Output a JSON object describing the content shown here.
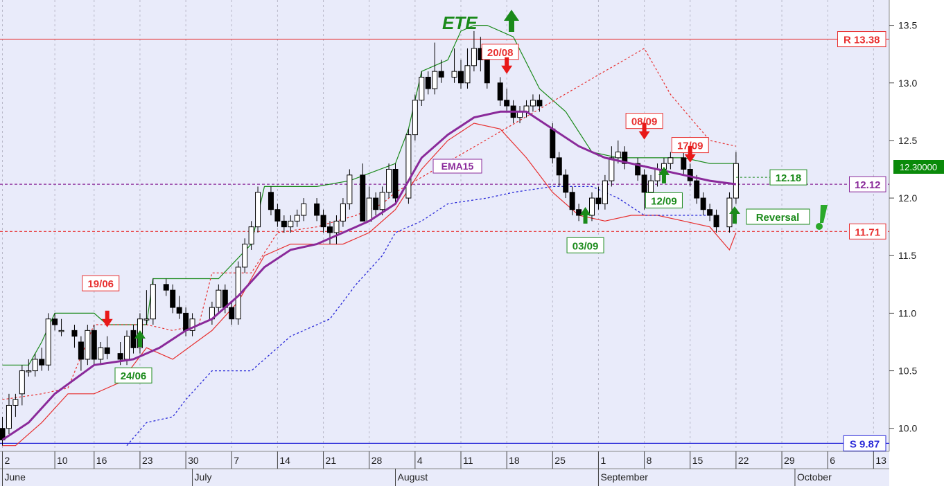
{
  "chart_data": {
    "type": "candlestick",
    "ylim": [
      9.8,
      13.72
    ],
    "y_ticks": [
      "10.0",
      "10.5",
      "11.0",
      "11.5",
      "12.0",
      "12.5",
      "13.0",
      "13.5"
    ],
    "x_days": [
      {
        "l": "2",
        "d": 2
      },
      {
        "l": "10",
        "d": 10
      },
      {
        "l": "16",
        "d": 16
      },
      {
        "l": "23",
        "d": 23
      },
      {
        "l": "30",
        "d": 30
      },
      {
        "l": "7",
        "d": 37
      },
      {
        "l": "14",
        "d": 44
      },
      {
        "l": "21",
        "d": 51
      },
      {
        "l": "28",
        "d": 58
      },
      {
        "l": "4",
        "d": 65
      },
      {
        "l": "11",
        "d": 72
      },
      {
        "l": "18",
        "d": 79
      },
      {
        "l": "25",
        "d": 86
      },
      {
        "l": "1",
        "d": 93
      },
      {
        "l": "8",
        "d": 100
      },
      {
        "l": "15",
        "d": 107
      },
      {
        "l": "22",
        "d": 114
      },
      {
        "l": "29",
        "d": 121
      },
      {
        "l": "6",
        "d": 128
      },
      {
        "l": "13",
        "d": 135
      }
    ],
    "x_months": [
      {
        "l": "June",
        "d": 2
      },
      {
        "l": "July",
        "d": 31
      },
      {
        "l": "August",
        "d": 62
      },
      {
        "l": "September",
        "d": 93
      },
      {
        "l": "October",
        "d": 123
      }
    ],
    "candles": [
      [
        2,
        10.0,
        9.9,
        10.1,
        9.85
      ],
      [
        3,
        10.0,
        10.2,
        10.3,
        9.95
      ],
      [
        4,
        10.2,
        10.25,
        10.3,
        10.1
      ],
      [
        5,
        10.3,
        10.5,
        10.55,
        10.2
      ],
      [
        6,
        10.5,
        10.5,
        10.6,
        10.45
      ],
      [
        7,
        10.5,
        10.6,
        10.65,
        10.45
      ],
      [
        8,
        10.6,
        10.55,
        10.7,
        10.5
      ],
      [
        9,
        10.55,
        10.95,
        11.0,
        10.5
      ],
      [
        10,
        10.95,
        10.9,
        11.0,
        10.85
      ],
      [
        11,
        10.85,
        10.85,
        10.95,
        10.8
      ],
      [
        13,
        10.85,
        10.8,
        10.9,
        10.7
      ],
      [
        14,
        10.75,
        10.6,
        10.8,
        10.5
      ],
      [
        15,
        10.6,
        10.85,
        10.9,
        10.55
      ],
      [
        16,
        10.85,
        10.6,
        10.9,
        10.55
      ],
      [
        17,
        10.6,
        10.7,
        10.75,
        10.55
      ],
      [
        18,
        10.7,
        10.65,
        10.8,
        10.6
      ],
      [
        20,
        10.65,
        10.6,
        10.75,
        10.55
      ],
      [
        21,
        10.6,
        10.8,
        10.85,
        10.55
      ],
      [
        22,
        10.85,
        10.7,
        10.9,
        10.65
      ],
      [
        23,
        10.7,
        10.95,
        11.0,
        10.65
      ],
      [
        24,
        10.95,
        10.95,
        11.2,
        10.9
      ],
      [
        25,
        10.95,
        11.25,
        11.3,
        10.9
      ],
      [
        27,
        11.25,
        11.2,
        11.3,
        11.15
      ],
      [
        28,
        11.2,
        11.05,
        11.25,
        11.0
      ],
      [
        29,
        11.05,
        11.0,
        11.15,
        10.95
      ],
      [
        30,
        11.0,
        10.85,
        11.05,
        10.8
      ],
      [
        31,
        10.85,
        10.95,
        11.0,
        10.8
      ],
      [
        34,
        10.95,
        11.05,
        11.1,
        10.9
      ],
      [
        35,
        11.05,
        11.2,
        11.25,
        11.0
      ],
      [
        36,
        11.2,
        11.05,
        11.25,
        11.0
      ],
      [
        37,
        11.05,
        10.95,
        11.1,
        10.9
      ],
      [
        38,
        10.95,
        11.4,
        11.45,
        10.9
      ],
      [
        39,
        11.4,
        11.6,
        11.65,
        11.35
      ],
      [
        40,
        11.6,
        11.75,
        11.8,
        11.55
      ],
      [
        41,
        11.75,
        12.05,
        12.1,
        11.7
      ],
      [
        43,
        12.05,
        11.9,
        12.1,
        11.85
      ],
      [
        44,
        11.9,
        11.8,
        11.95,
        11.75
      ],
      [
        45,
        11.8,
        11.75,
        11.85,
        11.7
      ],
      [
        46,
        11.75,
        11.8,
        11.85,
        11.7
      ],
      [
        47,
        11.8,
        11.85,
        11.9,
        11.75
      ],
      [
        48,
        11.85,
        11.95,
        12.0,
        11.8
      ],
      [
        50,
        11.95,
        11.85,
        12.0,
        11.8
      ],
      [
        51,
        11.85,
        11.75,
        11.9,
        11.7
      ],
      [
        52,
        11.75,
        11.7,
        11.8,
        11.6
      ],
      [
        53,
        11.7,
        11.8,
        11.85,
        11.6
      ],
      [
        54,
        11.8,
        11.95,
        12.0,
        11.75
      ],
      [
        55,
        11.95,
        12.2,
        12.25,
        11.9
      ],
      [
        57,
        12.2,
        11.8,
        12.3,
        11.8
      ],
      [
        58,
        11.8,
        12.0,
        12.1,
        11.8
      ],
      [
        59,
        12.0,
        11.9,
        12.05,
        11.85
      ],
      [
        60,
        11.9,
        12.05,
        12.1,
        11.85
      ],
      [
        61,
        12.05,
        12.25,
        12.3,
        12.0
      ],
      [
        62,
        12.25,
        12.0,
        12.3,
        11.95
      ],
      [
        64,
        12.0,
        12.55,
        12.6,
        11.95
      ],
      [
        65,
        12.55,
        12.85,
        12.9,
        12.5
      ],
      [
        66,
        12.85,
        13.05,
        13.1,
        12.8
      ],
      [
        67,
        13.05,
        12.95,
        13.1,
        12.9
      ],
      [
        68,
        12.95,
        13.1,
        13.35,
        12.9
      ],
      [
        69,
        13.1,
        13.05,
        13.2,
        13.0
      ],
      [
        71,
        13.05,
        13.1,
        13.3,
        13.0
      ],
      [
        72,
        13.1,
        13.0,
        13.2,
        12.95
      ],
      [
        73,
        13.0,
        13.15,
        13.3,
        12.95
      ],
      [
        74,
        13.15,
        13.3,
        13.45,
        13.1
      ],
      [
        75,
        13.3,
        13.2,
        13.4,
        13.1
      ],
      [
        76,
        13.2,
        13.0,
        13.25,
        12.95
      ],
      [
        78,
        13.0,
        12.85,
        13.05,
        12.8
      ],
      [
        79,
        12.85,
        12.8,
        12.95,
        12.75
      ],
      [
        80,
        12.8,
        12.7,
        12.85,
        12.65
      ],
      [
        81,
        12.7,
        12.75,
        12.8,
        12.65
      ],
      [
        82,
        12.75,
        12.8,
        12.85,
        12.7
      ],
      [
        83,
        12.8,
        12.85,
        12.9,
        12.75
      ],
      [
        84,
        12.85,
        12.8,
        12.9,
        12.75
      ],
      [
        86,
        12.6,
        12.35,
        12.65,
        12.3
      ],
      [
        87,
        12.35,
        12.2,
        12.4,
        12.1
      ],
      [
        88,
        12.2,
        12.05,
        12.25,
        12.0
      ],
      [
        89,
        12.05,
        11.9,
        12.1,
        11.85
      ],
      [
        90,
        11.9,
        11.85,
        11.95,
        11.8
      ],
      [
        92,
        11.85,
        12.0,
        12.05,
        11.8
      ],
      [
        93,
        12.0,
        11.95,
        12.1,
        11.9
      ],
      [
        94,
        11.95,
        12.15,
        12.2,
        11.9
      ],
      [
        95,
        12.15,
        12.35,
        12.45,
        12.1
      ],
      [
        96,
        12.35,
        12.4,
        12.5,
        12.3
      ],
      [
        97,
        12.4,
        12.3,
        12.45,
        12.25
      ],
      [
        99,
        12.3,
        12.2,
        12.35,
        12.15
      ],
      [
        100,
        12.2,
        12.05,
        12.25,
        11.9
      ],
      [
        101,
        12.05,
        12.15,
        12.2,
        12.0
      ],
      [
        102,
        12.15,
        12.25,
        12.3,
        12.1
      ],
      [
        103,
        12.25,
        12.3,
        12.35,
        12.2
      ],
      [
        104,
        12.3,
        12.35,
        12.4,
        12.25
      ],
      [
        106,
        12.35,
        12.25,
        12.4,
        12.2
      ],
      [
        107,
        12.25,
        12.15,
        12.3,
        12.1
      ],
      [
        108,
        12.15,
        12.0,
        12.2,
        11.95
      ],
      [
        109,
        12.0,
        11.9,
        12.05,
        11.85
      ],
      [
        110,
        11.9,
        11.85,
        11.95,
        11.8
      ],
      [
        111,
        11.85,
        11.75,
        11.9,
        11.7
      ],
      [
        113,
        11.75,
        12.0,
        12.05,
        11.7
      ],
      [
        114,
        12.0,
        12.3,
        12.4,
        11.95
      ]
    ],
    "ema_label": "EMA15",
    "ema": [
      [
        2,
        9.9
      ],
      [
        6,
        10.05
      ],
      [
        10,
        10.3
      ],
      [
        16,
        10.55
      ],
      [
        22,
        10.6
      ],
      [
        26,
        10.7
      ],
      [
        30,
        10.85
      ],
      [
        34,
        10.95
      ],
      [
        38,
        11.15
      ],
      [
        42,
        11.4
      ],
      [
        46,
        11.55
      ],
      [
        50,
        11.6
      ],
      [
        54,
        11.7
      ],
      [
        58,
        11.8
      ],
      [
        62,
        11.95
      ],
      [
        66,
        12.35
      ],
      [
        70,
        12.55
      ],
      [
        74,
        12.7
      ],
      [
        78,
        12.75
      ],
      [
        82,
        12.75
      ],
      [
        86,
        12.6
      ],
      [
        90,
        12.45
      ],
      [
        94,
        12.35
      ],
      [
        98,
        12.3
      ],
      [
        102,
        12.25
      ],
      [
        106,
        12.2
      ],
      [
        110,
        12.15
      ],
      [
        114,
        12.12
      ]
    ],
    "upper_band": [
      [
        2,
        10.55
      ],
      [
        6,
        10.55
      ],
      [
        8,
        10.75
      ],
      [
        10,
        11.0
      ],
      [
        16,
        11.0
      ],
      [
        18,
        10.9
      ],
      [
        24,
        10.9
      ],
      [
        25,
        11.3
      ],
      [
        35,
        11.3
      ],
      [
        40,
        11.6
      ],
      [
        42,
        12.1
      ],
      [
        50,
        12.1
      ],
      [
        55,
        12.15
      ],
      [
        62,
        12.3
      ],
      [
        64,
        12.6
      ],
      [
        66,
        13.1
      ],
      [
        70,
        13.2
      ],
      [
        72,
        13.45
      ],
      [
        74,
        13.5
      ],
      [
        76,
        13.5
      ],
      [
        80,
        13.4
      ],
      [
        84,
        12.95
      ],
      [
        88,
        12.75
      ],
      [
        92,
        12.4
      ],
      [
        96,
        12.35
      ],
      [
        100,
        12.35
      ],
      [
        106,
        12.35
      ],
      [
        110,
        12.3
      ],
      [
        114,
        12.3
      ]
    ],
    "lower_band": [
      [
        2,
        9.85
      ],
      [
        4,
        9.85
      ],
      [
        8,
        10.05
      ],
      [
        12,
        10.3
      ],
      [
        16,
        10.3
      ],
      [
        20,
        10.4
      ],
      [
        24,
        10.7
      ],
      [
        28,
        10.6
      ],
      [
        34,
        10.85
      ],
      [
        38,
        11.1
      ],
      [
        42,
        11.5
      ],
      [
        46,
        11.6
      ],
      [
        50,
        11.6
      ],
      [
        54,
        11.6
      ],
      [
        58,
        11.7
      ],
      [
        62,
        11.9
      ],
      [
        66,
        12.25
      ],
      [
        70,
        12.5
      ],
      [
        74,
        12.65
      ],
      [
        78,
        12.6
      ],
      [
        82,
        12.35
      ],
      [
        86,
        12.05
      ],
      [
        90,
        11.85
      ],
      [
        94,
        11.8
      ],
      [
        98,
        11.85
      ],
      [
        102,
        11.85
      ],
      [
        106,
        11.8
      ],
      [
        110,
        11.75
      ],
      [
        113,
        11.55
      ],
      [
        114,
        11.7
      ]
    ],
    "red_stop": [
      [
        2,
        10.25
      ],
      [
        8,
        10.3
      ],
      [
        12,
        10.35
      ],
      [
        16,
        10.9
      ],
      [
        20,
        10.9
      ],
      [
        24,
        10.9
      ],
      [
        28,
        10.85
      ],
      [
        32,
        10.9
      ],
      [
        34,
        11.35
      ],
      [
        40,
        11.35
      ],
      [
        44,
        11.7
      ],
      [
        50,
        11.75
      ],
      [
        56,
        11.85
      ],
      [
        60,
        11.95
      ],
      [
        62,
        12.05
      ],
      [
        100,
        13.3
      ],
      [
        104,
        12.9
      ],
      [
        110,
        12.5
      ],
      [
        114,
        12.45
      ]
    ],
    "blue_stop": [
      [
        21,
        9.85
      ],
      [
        24,
        10.05
      ],
      [
        28,
        10.1
      ],
      [
        30,
        10.25
      ],
      [
        34,
        10.5
      ],
      [
        40,
        10.5
      ],
      [
        46,
        10.8
      ],
      [
        52,
        10.95
      ],
      [
        56,
        11.25
      ],
      [
        60,
        11.5
      ],
      [
        62,
        11.7
      ],
      [
        66,
        11.8
      ],
      [
        70,
        11.95
      ],
      [
        76,
        12.0
      ],
      [
        80,
        12.05
      ],
      [
        86,
        12.1
      ],
      [
        92,
        12.1
      ],
      [
        96,
        12.0
      ],
      [
        100,
        11.85
      ],
      [
        106,
        11.85
      ],
      [
        110,
        11.85
      ]
    ],
    "levels": [
      {
        "value": 13.38,
        "label": "R 13.38",
        "color": "#e83030",
        "dash": false
      },
      {
        "value": 12.12,
        "label": "12.12",
        "color": "#8a2a9a",
        "dash": true
      },
      {
        "value": 11.71,
        "label": "11.71",
        "color": "#e83030",
        "dash": true
      },
      {
        "value": 9.87,
        "label": "S 9.87",
        "color": "#2828d8",
        "dash": false
      }
    ],
    "last_price": "12.30000",
    "annotations": [
      {
        "text": "19/06",
        "color": "#e83030",
        "d": 17,
        "y": 11.26,
        "arrow": "down"
      },
      {
        "text": "24/06",
        "color": "#1a8a1a",
        "d": 22,
        "y": 10.46,
        "arrow": "up"
      },
      {
        "text": "20/08",
        "color": "#e83030",
        "d": 78,
        "y": 13.27,
        "arrow": "down"
      },
      {
        "text": "03/09",
        "color": "#1a8a1a",
        "d": 91,
        "y": 11.59,
        "arrow": "up"
      },
      {
        "text": "08/09",
        "color": "#e83030",
        "d": 100,
        "y": 12.67,
        "arrow": "down"
      },
      {
        "text": "12/09",
        "color": "#1a8a1a",
        "d": 103,
        "y": 11.98,
        "arrow": "up"
      },
      {
        "text": "17/09",
        "color": "#e83030",
        "d": 107,
        "y": 12.46,
        "arrow": "down"
      },
      {
        "text": "12.18",
        "color": "#1a8a1a",
        "d": 122,
        "y": 12.18,
        "arrow": "none"
      }
    ],
    "ete_label": "ETE",
    "reversal_label": "Reversal"
  }
}
